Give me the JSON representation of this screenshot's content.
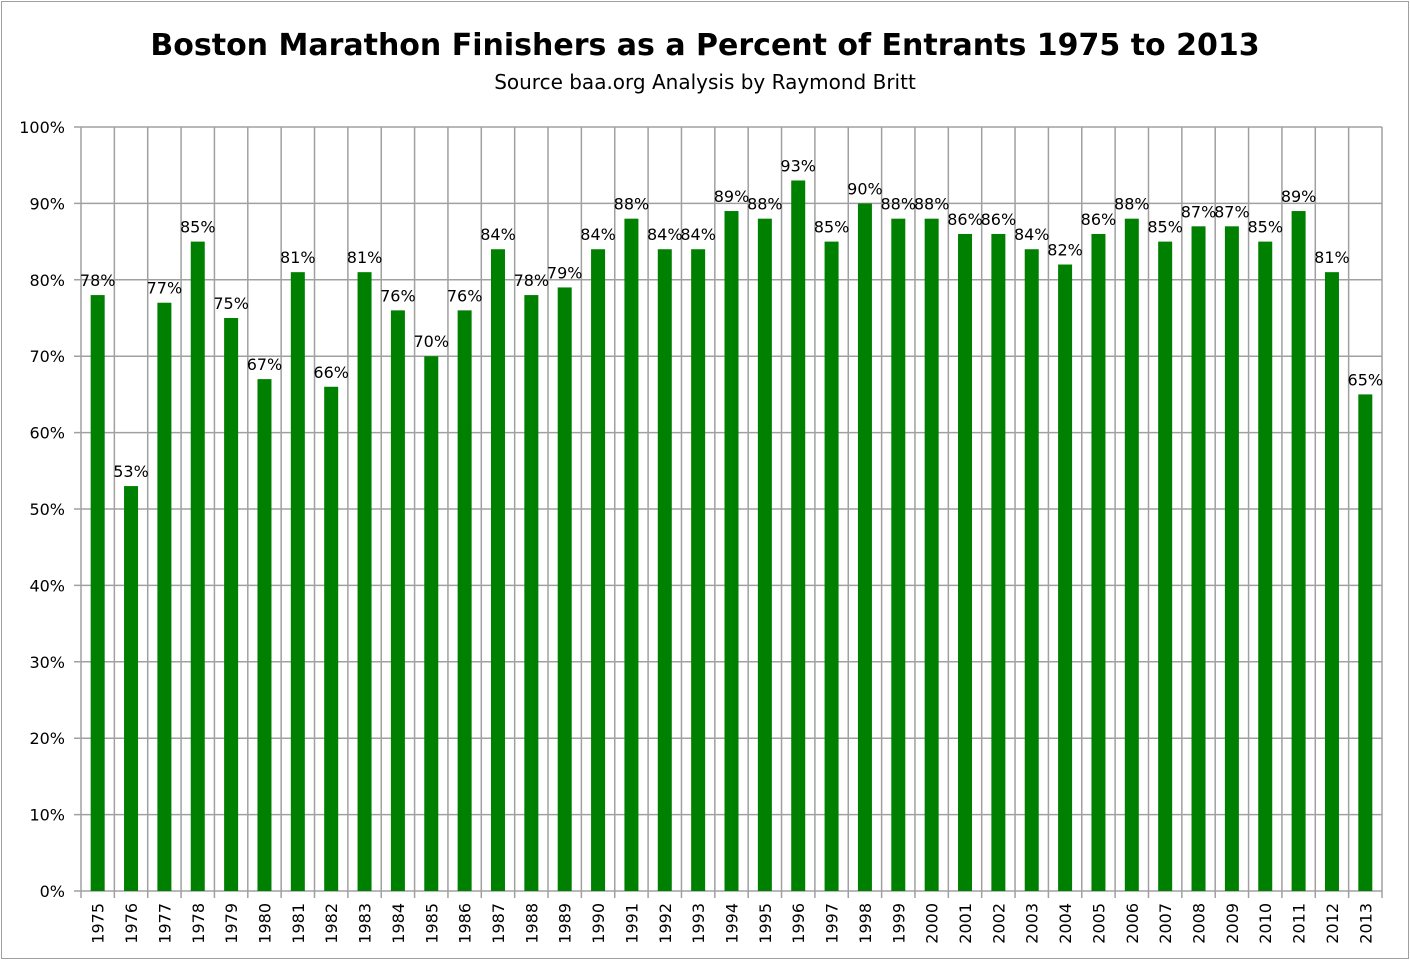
{
  "chart_data": {
    "type": "bar",
    "title": "Boston Marathon Finishers as a Percent of Entrants 1975 to 2013",
    "subtitle": "Source baa.org  Analysis by Raymond Britt",
    "xlabel": "",
    "ylabel": "",
    "ylim": [
      0,
      100
    ],
    "y_ticks": [
      "0%",
      "10%",
      "20%",
      "30%",
      "40%",
      "50%",
      "60%",
      "70%",
      "80%",
      "90%",
      "100%"
    ],
    "grid": true,
    "bar_color": "#008000",
    "categories": [
      "1975",
      "1976",
      "1977",
      "1978",
      "1979",
      "1980",
      "1981",
      "1982",
      "1983",
      "1984",
      "1985",
      "1986",
      "1987",
      "1988",
      "1989",
      "1990",
      "1991",
      "1992",
      "1993",
      "1994",
      "1995",
      "1996",
      "1997",
      "1998",
      "1999",
      "2000",
      "2001",
      "2002",
      "2003",
      "2004",
      "2005",
      "2006",
      "2007",
      "2008",
      "2009",
      "2010",
      "2011",
      "2012",
      "2013"
    ],
    "values": [
      78,
      53,
      77,
      85,
      75,
      67,
      81,
      66,
      81,
      76,
      70,
      76,
      84,
      78,
      79,
      84,
      88,
      84,
      84,
      89,
      88,
      93,
      85,
      90,
      88,
      88,
      86,
      86,
      84,
      82,
      86,
      88,
      85,
      87,
      87,
      85,
      89,
      81,
      65
    ],
    "data_labels": [
      "78%",
      "53%",
      "77%",
      "85%",
      "75%",
      "67%",
      "81%",
      "66%",
      "81%",
      "76%",
      "70%",
      "76%",
      "84%",
      "78%",
      "79%",
      "84%",
      "88%",
      "84%",
      "84%",
      "89%",
      "88%",
      "93%",
      "85%",
      "90%",
      "88%",
      "88%",
      "86%",
      "86%",
      "84%",
      "82%",
      "86%",
      "88%",
      "85%",
      "87%",
      "87%",
      "85%",
      "89%",
      "81%",
      "65%"
    ]
  }
}
